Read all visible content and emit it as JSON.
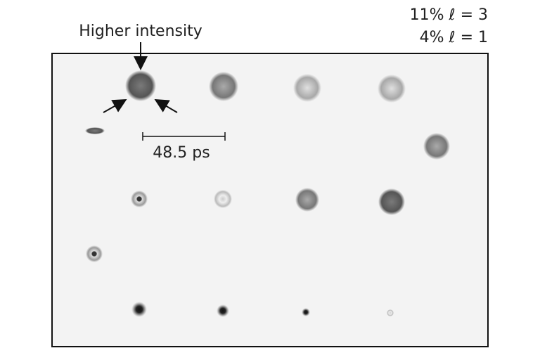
{
  "annotations": {
    "pointer_label": "Higher intensity",
    "scale_bar_label": "48.5 ps",
    "mode_lines": [
      "11% ℓ = 3",
      "4% ℓ = 1"
    ]
  }
}
